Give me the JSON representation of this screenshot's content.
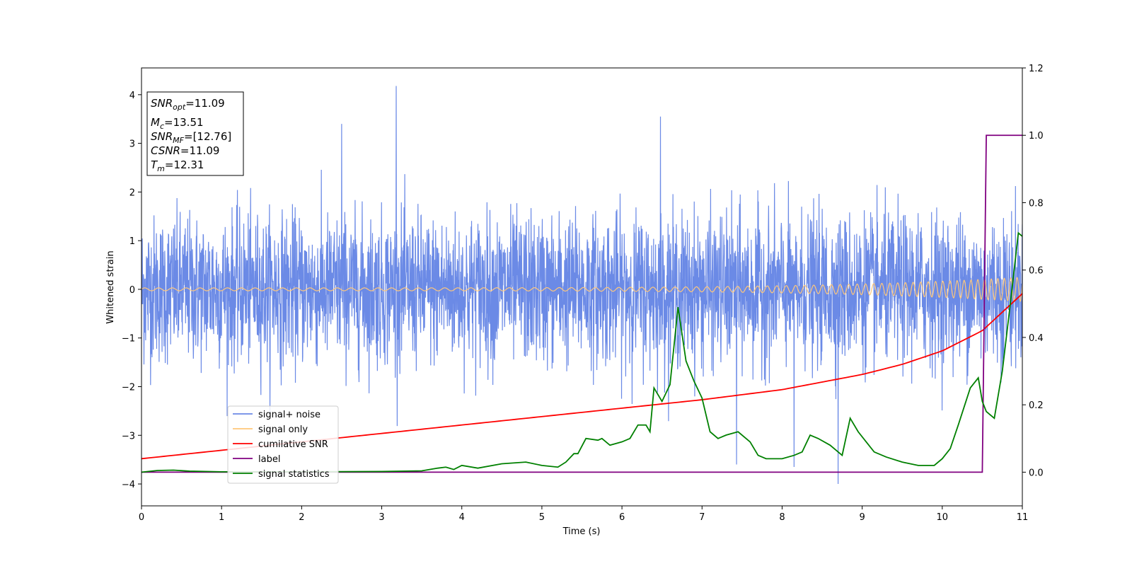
{
  "chart_data": {
    "type": "line",
    "title": "",
    "xlabel": "Time (s)",
    "ylabel": "Whitened strain",
    "xlim": [
      0,
      11
    ],
    "ylim": [
      -4.45,
      4.55
    ],
    "y2lim": [
      -0.1,
      1.2
    ],
    "x_ticks": [
      "0",
      "1",
      "2",
      "3",
      "4",
      "5",
      "6",
      "7",
      "8",
      "9",
      "10",
      "11"
    ],
    "y_ticks": [
      "−4",
      "−3",
      "−2",
      "−1",
      "0",
      "1",
      "2",
      "3",
      "4"
    ],
    "y2_ticks": [
      "0.0",
      "0.2",
      "0.4",
      "0.6",
      "0.8",
      "1.0",
      "1.2"
    ],
    "grid": false,
    "legend_position": "lower-left",
    "colors": {
      "noise": "#6b8ae6",
      "signal": "#ffc77a",
      "csnr": "#ff0000",
      "label": "#800080",
      "stat": "#008000"
    },
    "annotation": {
      "snr_opt": {
        "main": "SNR",
        "sub": "opt",
        "value": "=11.09"
      },
      "mc": {
        "main": "M",
        "sub": "c",
        "value": "=13.51"
      },
      "snr_mf": {
        "main": "SNR",
        "sub": "MF",
        "value": "=[12.76]"
      },
      "csnr": {
        "main": "CSNR",
        "value": "=11.09"
      },
      "tm": {
        "main": "T",
        "sub": "m",
        "value": "=12.31"
      }
    },
    "series": [
      {
        "name": "signal+ noise",
        "axis": "left",
        "description_of_values": "whitened noise-dominated strain, roughly ±2 with spikes up to 4.2 and down to −4.0",
        "peaks": [
          {
            "x": 3.18,
            "y": 4.18
          },
          {
            "x": 6.48,
            "y": 3.55
          },
          {
            "x": 2.5,
            "y": 3.4
          },
          {
            "x": 8.7,
            "y": -4.0
          },
          {
            "x": 8.15,
            "y": -3.65
          },
          {
            "x": 7.43,
            "y": -3.6
          }
        ]
      },
      {
        "name": "signal only",
        "axis": "left",
        "description_of_values": "chirp oscillation around 0, amplitude growing from ~0.03 to ~0.25 at t≈11"
      },
      {
        "name": "cumilative SNR",
        "axis": "right",
        "x": [
          0,
          1,
          2,
          3,
          4,
          5,
          6,
          7,
          8,
          9,
          9.5,
          10,
          10.5,
          11
        ],
        "y": [
          0.04,
          0.065,
          0.09,
          0.115,
          0.14,
          0.165,
          0.19,
          0.215,
          0.245,
          0.29,
          0.32,
          0.36,
          0.42,
          0.53
        ]
      },
      {
        "name": "label",
        "axis": "right",
        "x": [
          0,
          10.5,
          10.55,
          11
        ],
        "y": [
          0,
          0,
          1,
          1
        ]
      },
      {
        "name": "signal statistics",
        "axis": "right",
        "x": [
          0,
          0.2,
          0.4,
          0.6,
          1,
          2,
          3,
          3.5,
          3.7,
          3.8,
          3.9,
          4,
          4.2,
          4.5,
          4.8,
          5,
          5.2,
          5.3,
          5.4,
          5.45,
          5.55,
          5.7,
          5.75,
          5.85,
          6,
          6.1,
          6.2,
          6.3,
          6.35,
          6.4,
          6.5,
          6.6,
          6.7,
          6.8,
          6.9,
          7,
          7.1,
          7.2,
          7.3,
          7.45,
          7.6,
          7.7,
          7.8,
          8,
          8.15,
          8.25,
          8.35,
          8.45,
          8.6,
          8.75,
          8.85,
          8.95,
          9.05,
          9.15,
          9.3,
          9.5,
          9.7,
          9.9,
          10,
          10.1,
          10.2,
          10.35,
          10.45,
          10.5,
          10.55,
          10.65,
          10.75,
          10.85,
          10.95,
          11
        ],
        "y": [
          0.0,
          0.005,
          0.006,
          0.003,
          0.001,
          0.001,
          0.002,
          0.004,
          0.012,
          0.015,
          0.008,
          0.02,
          0.012,
          0.025,
          0.03,
          0.02,
          0.015,
          0.03,
          0.055,
          0.055,
          0.1,
          0.095,
          0.1,
          0.08,
          0.09,
          0.1,
          0.14,
          0.14,
          0.12,
          0.25,
          0.21,
          0.26,
          0.49,
          0.33,
          0.27,
          0.22,
          0.12,
          0.1,
          0.11,
          0.12,
          0.09,
          0.05,
          0.04,
          0.04,
          0.05,
          0.06,
          0.11,
          0.1,
          0.08,
          0.05,
          0.16,
          0.12,
          0.09,
          0.06,
          0.045,
          0.03,
          0.02,
          0.02,
          0.04,
          0.07,
          0.14,
          0.25,
          0.28,
          0.21,
          0.18,
          0.16,
          0.3,
          0.5,
          0.71,
          0.7
        ]
      }
    ]
  }
}
